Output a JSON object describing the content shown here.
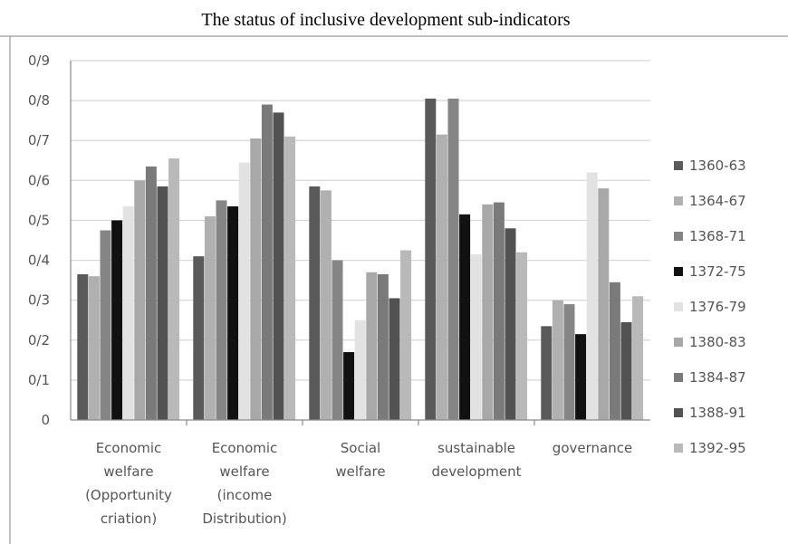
{
  "chart_data": {
    "type": "bar",
    "title": "The status of inclusive development sub-indicators",
    "xlabel": "",
    "ylabel": "",
    "ylim": [
      0,
      0.9
    ],
    "yticks": [
      "0",
      "0/1",
      "0/2",
      "0/3",
      "0/4",
      "0/5",
      "0/6",
      "0/7",
      "0/8",
      "0/9"
    ],
    "grid": true,
    "legend_position": "right",
    "categories": [
      [
        "Economic",
        "welfare",
        "(Opportunity",
        "criation)"
      ],
      [
        "Economic",
        "welfare",
        "(income",
        "Distribution)"
      ],
      [
        "Social",
        "welfare"
      ],
      [
        "sustainable",
        "development"
      ],
      [
        "governance"
      ]
    ],
    "series": [
      {
        "name": "1360-63",
        "color": "#5a5a5a",
        "values": [
          0.365,
          0.41,
          0.585,
          0.805,
          0.235
        ]
      },
      {
        "name": "1364-67",
        "color": "#b0b0b0",
        "values": [
          0.36,
          0.51,
          0.575,
          0.715,
          0.3
        ]
      },
      {
        "name": "1368-71",
        "color": "#858585",
        "values": [
          0.475,
          0.55,
          0.4,
          0.805,
          0.29
        ]
      },
      {
        "name": "1372-75",
        "color": "#111111",
        "values": [
          0.5,
          0.535,
          0.17,
          0.515,
          0.215
        ]
      },
      {
        "name": "1376-79",
        "color": "#e2e2e2",
        "values": [
          0.535,
          0.645,
          0.25,
          0.415,
          0.62
        ]
      },
      {
        "name": "1380-83",
        "color": "#a8a8a8",
        "values": [
          0.6,
          0.705,
          0.37,
          0.54,
          0.58
        ]
      },
      {
        "name": "1384-87",
        "color": "#7a7a7a",
        "values": [
          0.635,
          0.79,
          0.365,
          0.545,
          0.345
        ]
      },
      {
        "name": "1388-91",
        "color": "#525252",
        "values": [
          0.585,
          0.77,
          0.305,
          0.48,
          0.245
        ]
      },
      {
        "name": "1392-95",
        "color": "#b9b9b9",
        "values": [
          0.655,
          0.71,
          0.425,
          0.42,
          0.31
        ]
      }
    ]
  }
}
